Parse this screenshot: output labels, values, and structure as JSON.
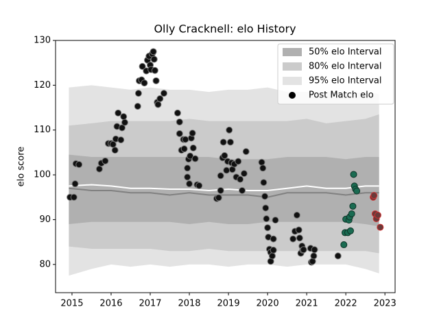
{
  "chart_data": {
    "type": "line",
    "title": "Olly Cracknell: elo History",
    "ylabel": "elo score",
    "x": [
      2014.92,
      2015.5,
      2016,
      2016.5,
      2017,
      2017.5,
      2018,
      2018.5,
      2019,
      2019.5,
      2020,
      2020.5,
      2021,
      2021.5,
      2022,
      2022.5,
      2022.85
    ],
    "bands": [
      {
        "name": "50% elo Interval",
        "color": "#b0b0b0",
        "upper": [
          104.5,
          104,
          104,
          104,
          104,
          104,
          104,
          104,
          103.5,
          103.5,
          103.5,
          104,
          104,
          104,
          103.5,
          104,
          104
        ],
        "lower": [
          89,
          89.5,
          89.5,
          89.5,
          89.5,
          89.5,
          89,
          89.5,
          89,
          89,
          89.5,
          89.5,
          89.5,
          89.5,
          89.5,
          89,
          88.5
        ]
      },
      {
        "name": "80% elo Interval",
        "color": "#cbcbcb",
        "upper": [
          111,
          111.5,
          112,
          112,
          112,
          112,
          112.5,
          112,
          112,
          112,
          112,
          112,
          112.5,
          111.5,
          112,
          112.5,
          113.5
        ],
        "lower": [
          84,
          83.5,
          83.5,
          83.5,
          83.5,
          83,
          83,
          83.5,
          83,
          83,
          83,
          83,
          83,
          83,
          83,
          83,
          82.5
        ]
      },
      {
        "name": "95% elo Interval",
        "color": "#e3e3e3",
        "upper": [
          119.5,
          120,
          119.5,
          119,
          119.5,
          119,
          119,
          118.5,
          119,
          119,
          119.5,
          118.5,
          118.5,
          118.5,
          118,
          118.5,
          118
        ],
        "lower": [
          77.5,
          79,
          80,
          79.5,
          80,
          79.5,
          80,
          80,
          79.5,
          80,
          80,
          79.5,
          80,
          80,
          80,
          79,
          78
        ]
      }
    ],
    "lines": [
      {
        "color": "#808080",
        "values": [
          97,
          96.5,
          96.5,
          96,
          96,
          95.5,
          96,
          95.5,
          95.5,
          95.5,
          95,
          96,
          96,
          96,
          95.5,
          96,
          96
        ]
      },
      {
        "color": "#ffffff",
        "values": [
          97.5,
          97.8,
          97.5,
          97,
          97,
          96.8,
          96.8,
          96.5,
          96.8,
          96.5,
          96.5,
          97,
          97.5,
          97,
          97,
          97.5,
          97.5
        ]
      }
    ],
    "scatter": {
      "name": "Post Match elo",
      "x": [
        2014.95,
        2015.05,
        2015.08,
        2015.1,
        2015.18,
        2015.7,
        2015.75,
        2015.85,
        2015.93,
        2016.0,
        2016.05,
        2016.1,
        2016.12,
        2016.15,
        2016.18,
        2016.25,
        2016.28,
        2016.32,
        2016.35,
        2016.68,
        2016.7,
        2016.72,
        2016.78,
        2016.8,
        2016.85,
        2016.9,
        2016.93,
        2016.97,
        2017.0,
        2017.02,
        2017.05,
        2017.08,
        2017.1,
        2017.12,
        2017.15,
        2017.18,
        2017.2,
        2017.25,
        2017.35,
        2017.7,
        2017.75,
        2017.75,
        2017.8,
        2017.85,
        2017.87,
        2017.9,
        2017.95,
        2017.95,
        2017.98,
        2018.0,
        2018.02,
        2018.05,
        2018.08,
        2018.1,
        2018.15,
        2018.2,
        2018.25,
        2018.7,
        2018.75,
        2018.8,
        2018.8,
        2018.85,
        2018.87,
        2018.9,
        2018.95,
        2018.98,
        2019.02,
        2019.05,
        2019.08,
        2019.1,
        2019.15,
        2019.2,
        2019.25,
        2019.3,
        2019.35,
        2019.4,
        2019.45,
        2019.85,
        2019.88,
        2019.9,
        2019.93,
        2019.95,
        2019.97,
        2020.0,
        2020.02,
        2020.05,
        2020.08,
        2020.08,
        2020.12,
        2020.15,
        2020.15,
        2020.2,
        2020.65,
        2020.7,
        2020.75,
        2020.8,
        2020.82,
        2020.85,
        2020.88,
        2020.9,
        2020.92,
        2021.1,
        2021.12,
        2021.15,
        2021.18,
        2021.2,
        2021.8,
        2021.95,
        2021.98,
        2022.0,
        2022.05,
        2022.08,
        2022.1,
        2022.12,
        2022.15,
        2022.18,
        2022.2,
        2022.22,
        2022.25,
        2022.28,
        2022.7,
        2022.72,
        2022.75,
        2022.78,
        2022.82,
        2022.88
      ],
      "values": [
        95,
        95,
        98,
        102.5,
        102.3,
        101.3,
        102.6,
        103.1,
        107,
        107,
        106.8,
        105.5,
        108,
        110.8,
        113.8,
        107.8,
        110.5,
        113,
        111.7,
        115.3,
        118.2,
        121,
        121.2,
        124.2,
        120.5,
        123.2,
        125.6,
        126.5,
        124.5,
        123.5,
        127,
        127.5,
        125.8,
        123.3,
        121,
        116.2,
        115.7,
        117,
        118.2,
        113.8,
        111.8,
        109.2,
        105.5,
        107.9,
        105.8,
        107.9,
        99.5,
        101.5,
        103.5,
        98,
        104.2,
        108.2,
        109.3,
        106,
        103.6,
        97.8,
        97.6,
        94.7,
        94.9,
        96.5,
        99.8,
        103.8,
        107.3,
        104.3,
        101,
        103,
        110,
        107.3,
        102.7,
        101.2,
        102.4,
        99.5,
        103,
        99,
        96.5,
        100.3,
        105.2,
        102.8,
        101.5,
        98.3,
        95.2,
        92.6,
        90.2,
        88.2,
        86.1,
        83.4,
        82.7,
        80.7,
        81.9,
        83.2,
        85.7,
        89.9,
        85.7,
        87.4,
        91,
        87.7,
        85.9,
        82.5,
        84.1,
        83.2,
        83.3,
        83.6,
        80.5,
        80.7,
        81.9,
        83.3,
        81.9,
        84.4,
        87.1,
        90.1,
        87.1,
        89.9,
        90.6,
        87.5,
        91.3,
        93,
        100.1,
        97.5,
        96.8,
        96.4,
        95,
        95.4,
        91.3,
        90.2,
        91,
        88.3
      ],
      "colors": [
        "#111",
        "#111",
        "#111",
        "#111",
        "#111",
        "#111",
        "#111",
        "#111",
        "#111",
        "#111",
        "#111",
        "#111",
        "#111",
        "#111",
        "#111",
        "#111",
        "#111",
        "#111",
        "#111",
        "#111",
        "#111",
        "#111",
        "#111",
        "#111",
        "#111",
        "#111",
        "#111",
        "#111",
        "#111",
        "#111",
        "#111",
        "#111",
        "#111",
        "#111",
        "#111",
        "#111",
        "#111",
        "#111",
        "#111",
        "#111",
        "#111",
        "#111",
        "#111",
        "#111",
        "#111",
        "#111",
        "#111",
        "#111",
        "#111",
        "#111",
        "#111",
        "#111",
        "#111",
        "#111",
        "#111",
        "#111",
        "#111",
        "#111",
        "#111",
        "#111",
        "#111",
        "#111",
        "#111",
        "#111",
        "#111",
        "#111",
        "#111",
        "#111",
        "#111",
        "#111",
        "#111",
        "#111",
        "#111",
        "#111",
        "#111",
        "#111",
        "#111",
        "#111",
        "#111",
        "#111",
        "#111",
        "#111",
        "#111",
        "#111",
        "#111",
        "#111",
        "#111",
        "#111",
        "#111",
        "#111",
        "#111",
        "#111",
        "#111",
        "#111",
        "#111",
        "#111",
        "#111",
        "#111",
        "#111",
        "#111",
        "#111",
        "#111",
        "#111",
        "#111",
        "#111",
        "#111",
        "#111",
        "#1a6b52",
        "#1a6b52",
        "#1a6b52",
        "#1a6b52",
        "#1a6b52",
        "#1a6b52",
        "#1a6b52",
        "#1a6b52",
        "#1a6b52",
        "#1a6b52",
        "#1a6b52",
        "#1a6b52",
        "#1a6b52",
        "#6a3a3a",
        "#6a3a3a",
        "#6a3a3a",
        "#6a3a3a",
        "#6a3a3a",
        "#6a3a3a"
      ],
      "edgecolors": [
        "#777",
        "#777",
        "#777",
        "#777",
        "#777",
        "#777",
        "#777",
        "#777",
        "#777",
        "#777",
        "#777",
        "#777",
        "#777",
        "#777",
        "#777",
        "#777",
        "#777",
        "#777",
        "#777",
        "#777",
        "#777",
        "#777",
        "#777",
        "#777",
        "#777",
        "#777",
        "#777",
        "#777",
        "#777",
        "#777",
        "#777",
        "#777",
        "#777",
        "#777",
        "#777",
        "#777",
        "#777",
        "#777",
        "#777",
        "#777",
        "#777",
        "#777",
        "#777",
        "#777",
        "#777",
        "#777",
        "#777",
        "#777",
        "#777",
        "#777",
        "#777",
        "#777",
        "#777",
        "#777",
        "#777",
        "#777",
        "#777",
        "#777",
        "#777",
        "#777",
        "#777",
        "#777",
        "#777",
        "#777",
        "#777",
        "#777",
        "#777",
        "#777",
        "#777",
        "#777",
        "#777",
        "#777",
        "#777",
        "#777",
        "#777",
        "#777",
        "#777",
        "#777",
        "#777",
        "#777",
        "#777",
        "#777",
        "#777",
        "#777",
        "#777",
        "#777",
        "#777",
        "#777",
        "#777",
        "#777",
        "#777",
        "#777",
        "#777",
        "#777",
        "#777",
        "#777",
        "#777",
        "#777",
        "#777",
        "#777",
        "#777",
        "#777",
        "#777",
        "#777",
        "#777",
        "#777",
        "#777",
        "#0d3326",
        "#0d3326",
        "#0d3326",
        "#0d3326",
        "#0d3326",
        "#0d3326",
        "#0d3326",
        "#0d3326",
        "#0d3326",
        "#0d3326",
        "#0d3326",
        "#0d3326",
        "#0d3326",
        "#d03030",
        "#d03030",
        "#d03030",
        "#d03030",
        "#d03030",
        "#d03030"
      ]
    },
    "xlim": [
      2014.58,
      2023.26
    ],
    "ylim": [
      73.7,
      130
    ],
    "xticks": [
      2015,
      2016,
      2017,
      2018,
      2019,
      2020,
      2021,
      2022,
      2023
    ],
    "yticks": [
      80,
      90,
      100,
      110,
      120,
      130
    ],
    "legend": "upper right"
  }
}
